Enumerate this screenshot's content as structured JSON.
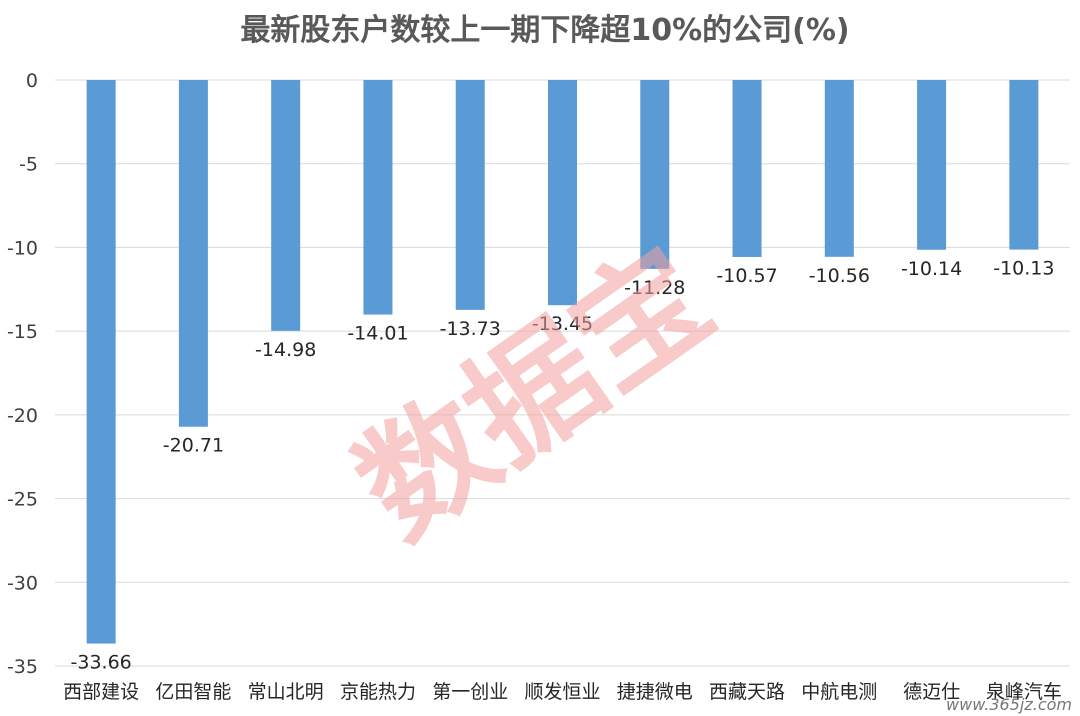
{
  "chart_data": {
    "type": "bar",
    "title": "最新股东户数较上一期下降超10%的公司(%)",
    "categories": [
      "西部建设",
      "亿田智能",
      "常山北明",
      "京能热力",
      "第一创业",
      "顺发恒业",
      "捷捷微电",
      "西藏天路",
      "中航电测",
      "德迈仕",
      "泉峰汽车"
    ],
    "values": [
      -33.66,
      -20.71,
      -14.98,
      -14.01,
      -13.73,
      -13.45,
      -11.28,
      -10.57,
      -10.56,
      -10.14,
      -10.13
    ],
    "data_labels": [
      "-33.66",
      "-20.71",
      "-14.98",
      "-14.01",
      "-13.73",
      "-13.45",
      "-11.28",
      "-10.57",
      "-10.56",
      "-10.14",
      "-10.13"
    ],
    "yticks": [
      0,
      -5,
      -10,
      -15,
      -20,
      -25,
      -30,
      -35
    ],
    "ylim": [
      -35,
      0
    ],
    "grid": true,
    "bar_color": "#5b9bd5"
  },
  "watermark": "数据宝",
  "site_mark": "www.365jz.com"
}
